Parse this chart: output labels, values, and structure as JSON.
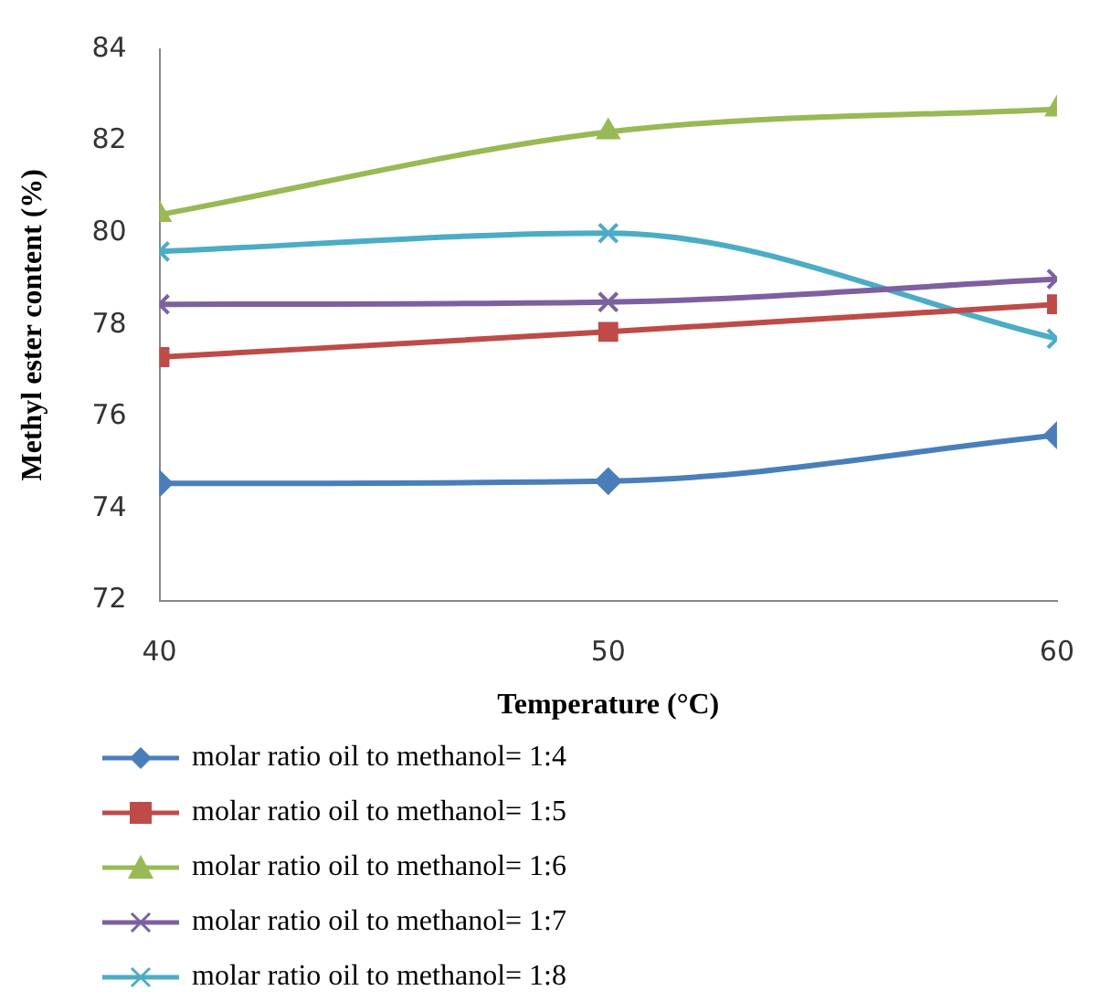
{
  "chart_data": {
    "type": "line",
    "xlabel": "Temperature (°C)",
    "ylabel": "Methyl ester content (%)",
    "x": [
      40,
      50,
      60
    ],
    "xlim": [
      40,
      60
    ],
    "xticks": [
      40,
      50,
      60
    ],
    "ylim": [
      72,
      84
    ],
    "yticks": [
      72,
      74,
      76,
      78,
      80,
      82,
      84
    ],
    "grid": false,
    "legend": "bottom",
    "series": [
      {
        "name": "molar ratio oil to methanol= 1:4",
        "color": "#4a7ebb",
        "marker": "diamond",
        "values": [
          74.55,
          74.6,
          75.6
        ]
      },
      {
        "name": "molar ratio oil to methanol= 1:5",
        "color": "#be4b48",
        "marker": "square",
        "values": [
          77.3,
          77.85,
          78.45
        ]
      },
      {
        "name": "molar ratio oil to methanol= 1:6",
        "color": "#98b954",
        "marker": "triangle",
        "values": [
          80.4,
          82.2,
          82.7
        ]
      },
      {
        "name": "molar ratio oil to methanol= 1:7",
        "color": "#7d60a0",
        "marker": "cross",
        "values": [
          78.45,
          78.5,
          79.0
        ]
      },
      {
        "name": "molar ratio oil to methanol= 1:8",
        "color": "#4bacc6",
        "marker": "cross",
        "values": [
          79.6,
          80.0,
          77.7
        ]
      }
    ]
  }
}
